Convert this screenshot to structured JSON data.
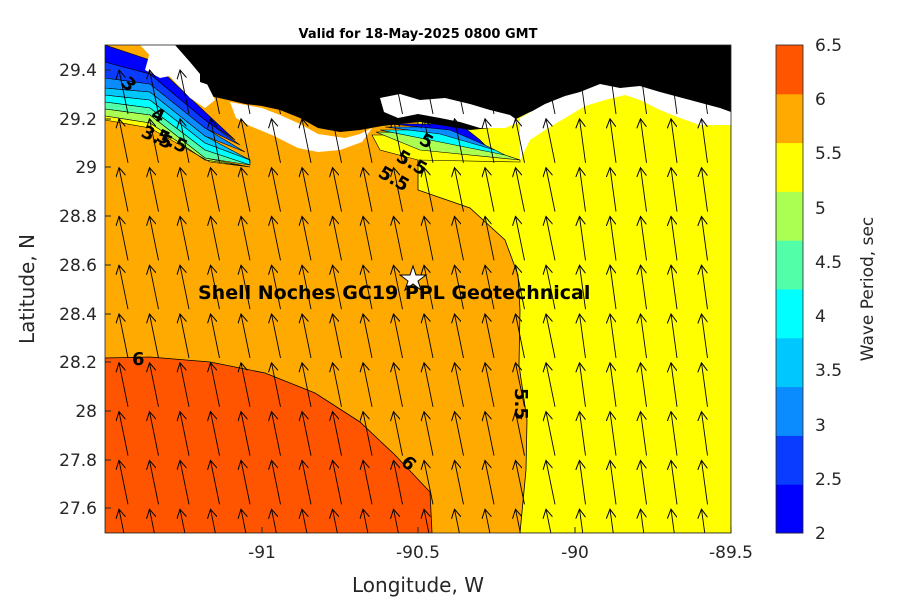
{
  "title": "Valid for 18-May-2025 0800 GMT",
  "x_label": "Longitude, W",
  "y_label": "Latitude, N",
  "x_ticks": [
    "-91",
    "-90.5",
    "-90",
    "-89.5"
  ],
  "y_ticks": [
    "29.4",
    "29.2",
    "29",
    "28.8",
    "28.6",
    "28.4",
    "28.2",
    "28",
    "27.8",
    "27.6"
  ],
  "colorbar": {
    "label": "Wave Period, sec",
    "ticks": [
      "6.5",
      "6",
      "5.5",
      "5",
      "4.5",
      "4",
      "3.5",
      "3",
      "2.5",
      "2"
    ],
    "colors": [
      "#0000ff",
      "#0a3cff",
      "#0a8cff",
      "#00c8ff",
      "#00ffff",
      "#52ffa8",
      "#aaff52",
      "#ffff00",
      "#ffaa00",
      "#ff5500"
    ]
  },
  "site": {
    "name": "Shell Noches   GC19 PPL  Geotechnical",
    "lon": -90.52,
    "lat": 28.55
  },
  "contour_labels": [
    "3",
    "3.5",
    "4",
    "5",
    "5.5",
    "5.5",
    "5.5",
    "5.5",
    "6",
    "6"
  ],
  "chart_data": {
    "type": "heatmap",
    "title": "Valid for 18-May-2025 0800 GMT",
    "xlabel": "Longitude, W",
    "ylabel": "Latitude, N",
    "xlim": [
      -91.5,
      -89.5
    ],
    "ylim": [
      27.5,
      29.5
    ],
    "variable": "Wave Period, sec",
    "clim": [
      2,
      6.5
    ],
    "levels": [
      2,
      2.5,
      3,
      3.5,
      4,
      4.5,
      5,
      5.5,
      6,
      6.5
    ],
    "regions": [
      {
        "range": "6-6.5",
        "color": "#ff5500",
        "area": "southwest"
      },
      {
        "range": "5.5-6",
        "color": "#ffaa00",
        "area": "central and west"
      },
      {
        "range": "5-5.5",
        "color": "#ffff00",
        "area": "east of -90.2"
      },
      {
        "range": "2-5",
        "color": "#0000ff-#00ffff",
        "area": "nearshore north"
      }
    ],
    "wave_direction": "from south, arrows pointing north",
    "land_color": "#000000"
  }
}
